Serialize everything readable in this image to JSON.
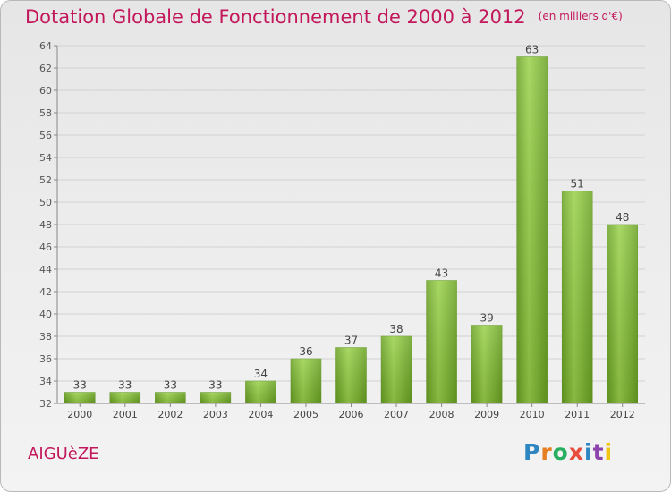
{
  "header": {
    "title": "Dotation Globale de Fonctionnement de 2000 à 2012",
    "unit": "(en milliers d'€)"
  },
  "footer": {
    "commune": "AIGUèZE",
    "logo_text": "Proxiti",
    "logo_colors": [
      "#2e86c1",
      "#e67e22",
      "#27ae60",
      "#e74c3c",
      "#2e86c1",
      "#8e44ad",
      "#f1c40f"
    ]
  },
  "chart_data": {
    "type": "bar",
    "title": "Dotation Globale de Fonctionnement de 2000 à 2012",
    "subtitle": "(en milliers d'€)",
    "xlabel": "",
    "ylabel": "",
    "categories": [
      "2000",
      "2001",
      "2002",
      "2003",
      "2004",
      "2005",
      "2006",
      "2007",
      "2008",
      "2009",
      "2010",
      "2011",
      "2012"
    ],
    "values": [
      33,
      33,
      33,
      33,
      34,
      36,
      37,
      38,
      43,
      39,
      63,
      51,
      48
    ],
    "ylim": [
      32,
      64
    ],
    "yticks": [
      32,
      34,
      36,
      38,
      40,
      42,
      44,
      46,
      48,
      50,
      52,
      54,
      56,
      58,
      60,
      62,
      64
    ],
    "grid": true,
    "bar_color": "#7cb82f",
    "data_labels": true
  }
}
